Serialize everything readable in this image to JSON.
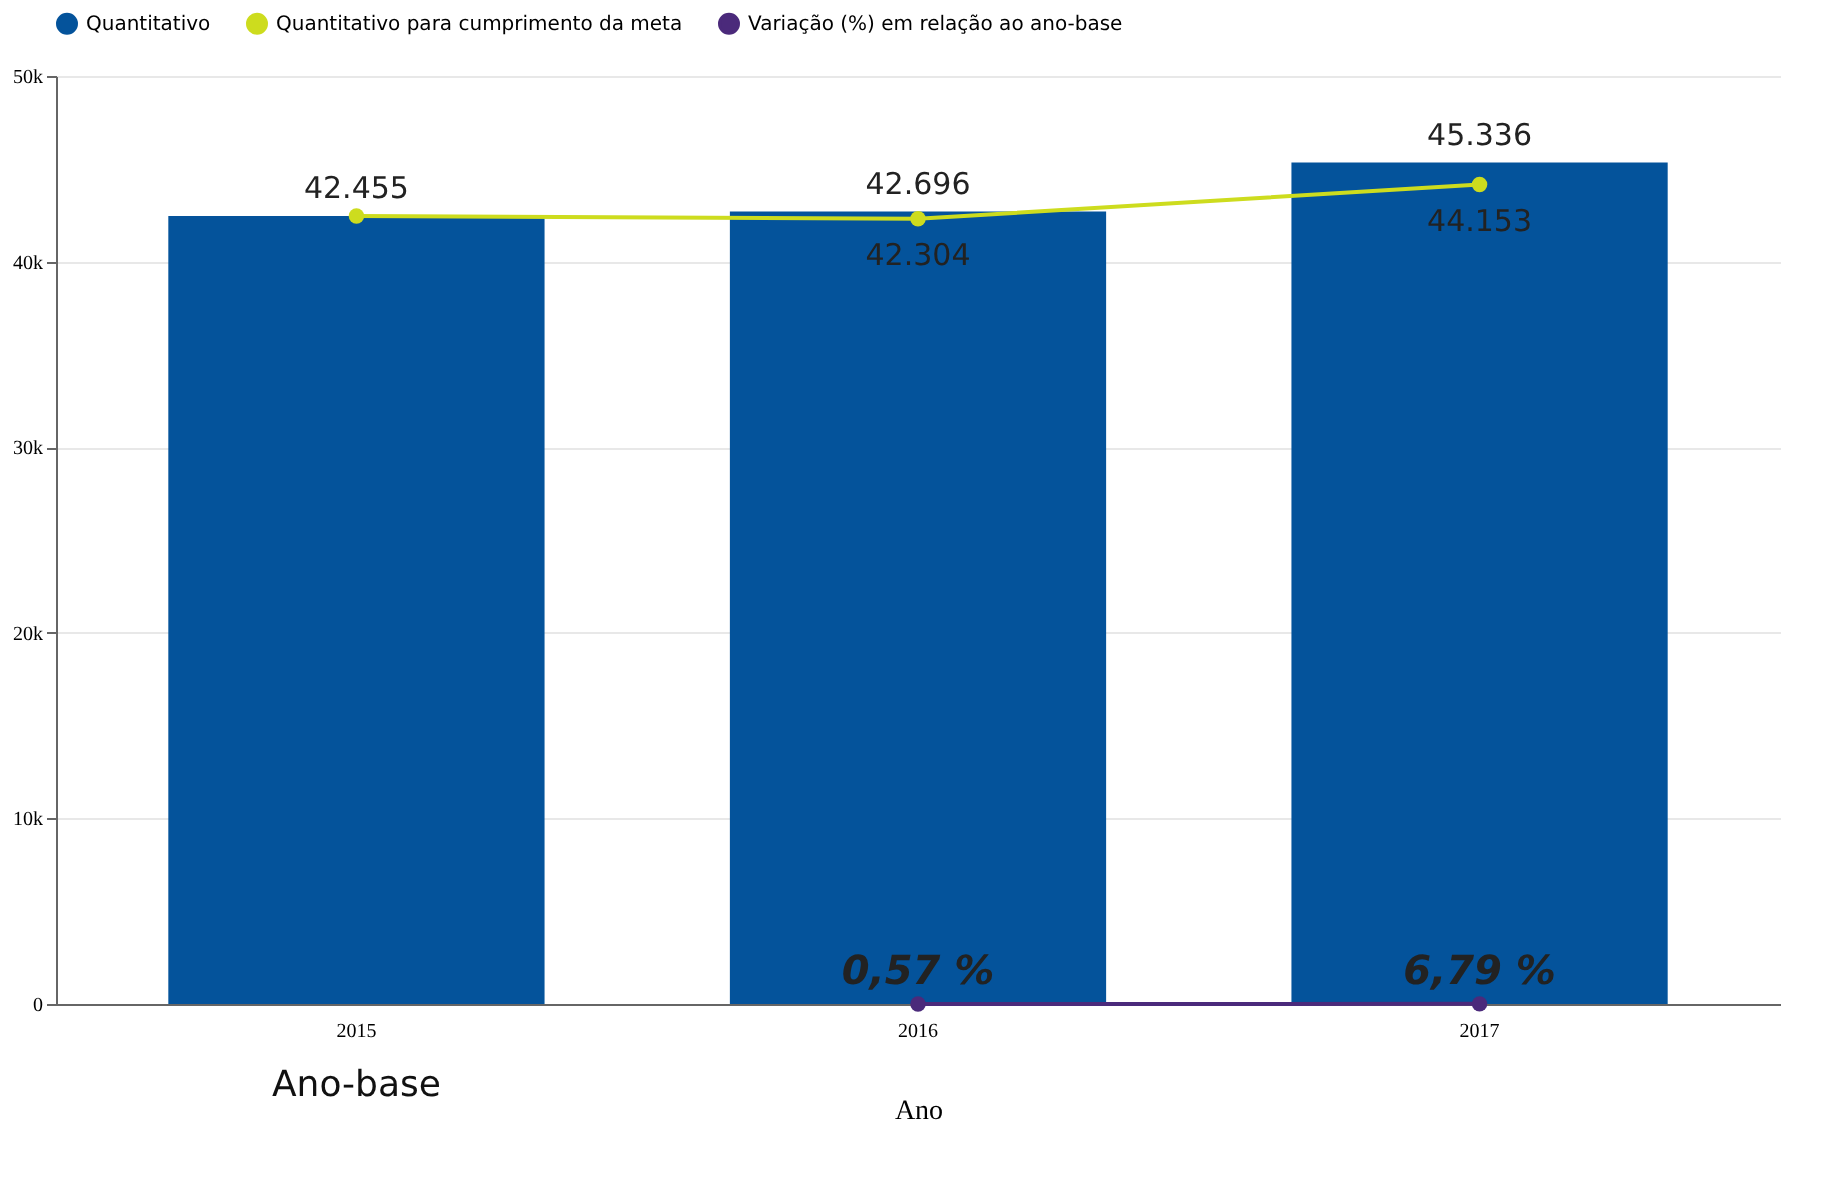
{
  "chart_data": {
    "type": "bar",
    "xlabel": "Ano",
    "categories": [
      "2015",
      "2016",
      "2017"
    ],
    "series": [
      {
        "name": "Quantitativo",
        "color": "#04539b",
        "values": [
          42455,
          42696,
          45336
        ],
        "value_labels": [
          "42.455",
          "42.696",
          "45.336"
        ]
      },
      {
        "name": "Quantitativo para cumprimento da meta",
        "type": "line",
        "color": "#cddc1e",
        "values": [
          42455,
          42304,
          44153
        ],
        "value_labels": [
          null,
          "42.304",
          "44.153"
        ]
      },
      {
        "name": "Variação (%) em relação ao ano-base",
        "type": "line",
        "color": "#4b2a7b",
        "values": [
          null,
          0.57,
          6.79
        ],
        "value_labels": [
          null,
          "0,57 %",
          "6,79 %"
        ]
      }
    ],
    "ylim": [
      0,
      50000
    ],
    "yticks": [
      0,
      {
        "value": 10000,
        "label": "10k"
      },
      {
        "value": 20000,
        "label": "20k"
      },
      {
        "value": 30000,
        "label": "30k"
      },
      {
        "value": 40000,
        "label": "40k"
      },
      {
        "value": 50000,
        "label": "50k"
      }
    ],
    "grid": "y",
    "legend": "top",
    "marker": "circle",
    "annotations": [
      "Ano-base"
    ]
  }
}
